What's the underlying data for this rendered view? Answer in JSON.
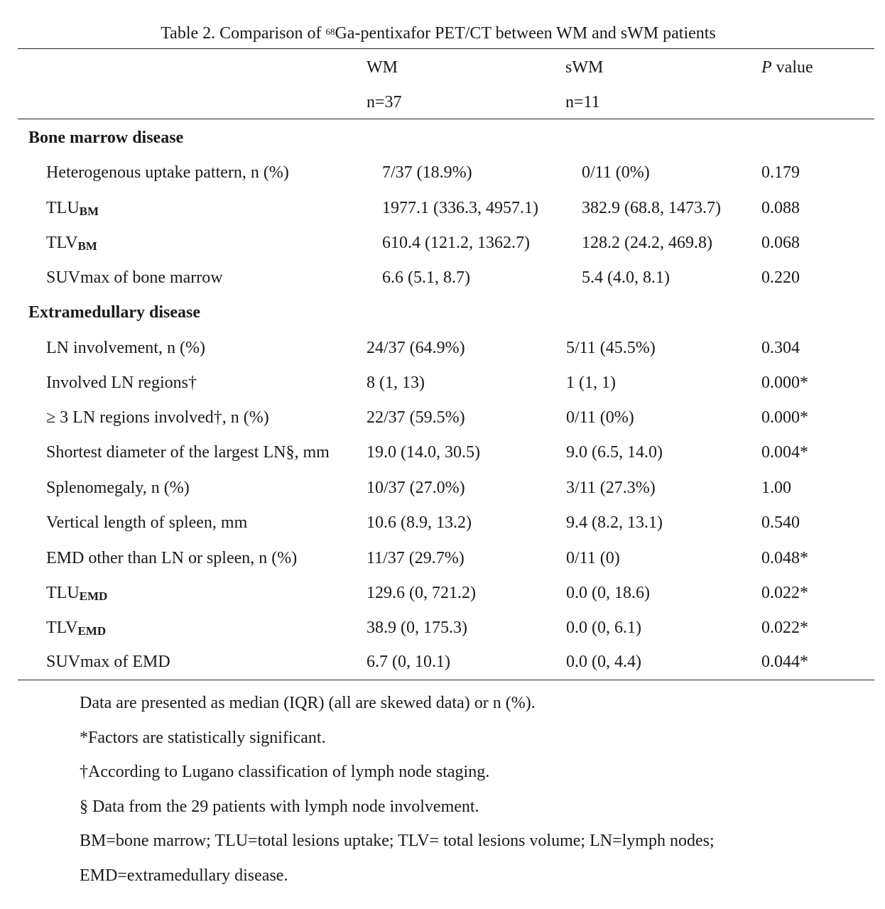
{
  "table": {
    "title_prefix": "Table 2. Comparison of ",
    "title_sup": "68",
    "title_suffix": "Ga-pentixafor PET/CT between WM and sWM patients",
    "headers": {
      "wm": "WM",
      "wm_n": "n=37",
      "swm": "sWM",
      "swm_n": "n=11",
      "p_italic": "P",
      "p_rest": " value"
    },
    "sections": [
      {
        "title": "Bone marrow disease",
        "rows": [
          {
            "label": "Heterogenous uptake pattern, n (%)",
            "label_sub": "",
            "wm": "7/37 (18.9%)",
            "swm": "0/11 (0%)",
            "p": "0.179"
          },
          {
            "label": "TLU",
            "label_sub": "BM",
            "wm": "1977.1 (336.3, 4957.1)",
            "swm": "382.9 (68.8, 1473.7)",
            "p": "0.088"
          },
          {
            "label": "TLV",
            "label_sub": "BM",
            "wm": "610.4 (121.2, 1362.7)",
            "swm": "128.2 (24.2, 469.8)",
            "p": "0.068"
          },
          {
            "label": "SUVmax of bone marrow",
            "label_sub": "",
            "wm": "6.6 (5.1, 8.7)",
            "swm": "5.4 (4.0, 8.1)",
            "p": "0.220"
          }
        ]
      },
      {
        "title": "Extramedullary disease",
        "rows": [
          {
            "label": "LN involvement, n (%)",
            "label_sub": "",
            "wm": "24/37 (64.9%)",
            "swm": "5/11 (45.5%)",
            "p": "0.304"
          },
          {
            "label": "Involved LN regions†",
            "label_sub": "",
            "wm": "8 (1, 13)",
            "swm": "1 (1, 1)",
            "p": "0.000*"
          },
          {
            "label": "≥ 3 LN regions involved†, n (%)",
            "label_sub": "",
            "wm": "22/37 (59.5%)",
            "swm": "0/11 (0%)",
            "p": "0.000*"
          },
          {
            "label": "Shortest diameter of the largest LN§, mm",
            "label_sub": "",
            "wm": "19.0 (14.0, 30.5)",
            "swm": "9.0 (6.5, 14.0)",
            "p": "0.004*"
          },
          {
            "label": "Splenomegaly, n (%)",
            "label_sub": "",
            "wm": "10/37 (27.0%)",
            "swm": "3/11 (27.3%)",
            "p": "1.00"
          },
          {
            "label": "Vertical length of spleen, mm",
            "label_sub": "",
            "wm": "10.6 (8.9, 13.2)",
            "swm": "9.4 (8.2, 13.1)",
            "p": "0.540"
          },
          {
            "label": "EMD other than LN or spleen, n (%)",
            "label_sub": "",
            "wm": "11/37 (29.7%)",
            "swm": "0/11 (0)",
            "p": "0.048*"
          },
          {
            "label": "TLU",
            "label_sub": "EMD",
            "wm": "129.6 (0, 721.2)",
            "swm": "0.0 (0, 18.6)",
            "p": "0.022*"
          },
          {
            "label": "TLV",
            "label_sub": "EMD",
            "wm": "38.9 (0, 175.3)",
            "swm": "0.0 (0, 6.1)",
            "p": "0.022*"
          },
          {
            "label": "SUVmax of EMD",
            "label_sub": "",
            "wm": "6.7 (0, 10.1)",
            "swm": "0.0 (0, 4.4)",
            "p": "0.044*"
          }
        ]
      }
    ],
    "notes": [
      "Data are presented as median (IQR) (all are skewed data) or n (%).",
      "*Factors are statistically significant.",
      "†According to Lugano classification of lymph node staging.",
      "§ Data from the 29 patients with lymph node involvement.",
      "BM=bone marrow; TLU=total lesions uptake; TLV= total lesions volume; LN=lymph nodes;",
      "EMD=extramedullary disease."
    ]
  }
}
